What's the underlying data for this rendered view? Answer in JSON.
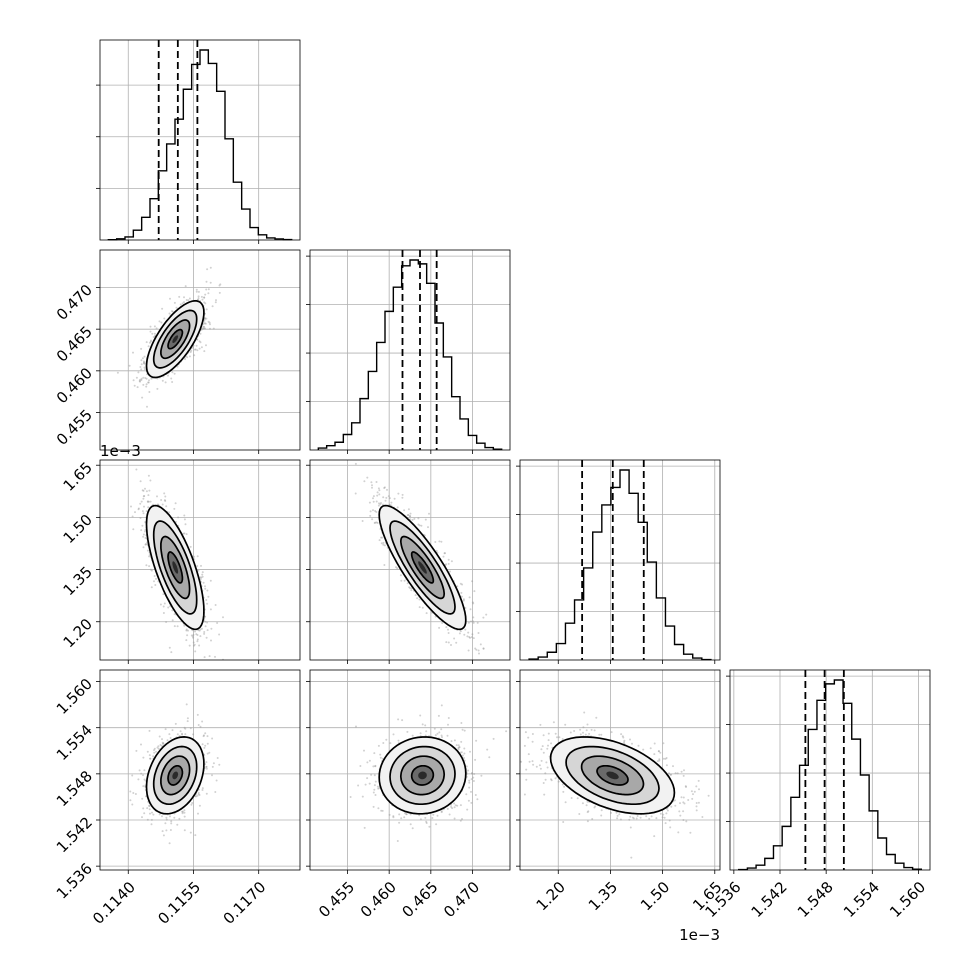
{
  "chart_data": {
    "type": "corner",
    "grid": true,
    "parameters": [
      {
        "index": 0,
        "range": [
          0.11335,
          0.11795
        ],
        "ticks": [
          0.114,
          0.1155,
          0.117
        ],
        "tick_labels": [
          "0.1140",
          "0.1155",
          "0.1170"
        ],
        "offset_label": "",
        "median": 0.11514,
        "quantiles": [
          0.1147,
          0.11559
        ],
        "hist_counts": [
          0.3,
          1.1,
          3,
          9.5,
          22,
          40,
          67,
          93,
          117,
          146,
          170,
          184,
          171,
          144,
          98,
          56,
          30,
          12,
          5,
          2,
          1,
          0.4
        ]
      },
      {
        "index": 1,
        "range": [
          0.4505,
          0.4745
        ],
        "ticks": [
          0.455,
          0.46,
          0.465,
          0.47
        ],
        "tick_labels": [
          "0.455",
          "0.460",
          "0.465",
          "0.470"
        ],
        "offset_label": "",
        "median": 0.4637,
        "quantiles": [
          0.4616,
          0.4657
        ],
        "hist_counts": [
          2,
          4.5,
          8,
          16,
          28,
          53,
          81,
          111,
          143,
          168,
          190,
          196,
          192,
          172,
          131,
          96,
          55,
          32,
          15,
          7,
          2.5,
          0.8
        ]
      },
      {
        "index": 2,
        "range": [
          1.09,
          1.665
        ],
        "ticks": [
          1.2,
          1.35,
          1.5,
          1.65
        ],
        "tick_labels": [
          "1.20",
          "1.35",
          "1.50",
          "1.65"
        ],
        "offset_label": "1e−3",
        "median": 1.3567,
        "quantiles": [
          1.2686,
          1.4458
        ],
        "hist_counts": [
          1,
          3,
          8,
          17,
          38,
          62,
          95,
          132,
          160,
          178,
          196,
          172,
          142,
          101,
          64,
          35,
          16,
          6,
          2,
          0.5
        ]
      },
      {
        "index": 3,
        "range": [
          1.5355,
          1.5615
        ],
        "ticks": [
          1.536,
          1.542,
          1.548,
          1.554,
          1.56
        ],
        "tick_labels": [
          "1.536",
          "1.542",
          "1.548",
          "1.554",
          "1.560"
        ],
        "offset_label": "",
        "median": 1.5478,
        "quantiles": [
          1.5453,
          1.5503
        ],
        "hist_counts": [
          0.5,
          2,
          5,
          12,
          25,
          45,
          75,
          108,
          145,
          175,
          192,
          196,
          172,
          135,
          98,
          61,
          33,
          16,
          7,
          2.5,
          0.8
        ]
      }
    ],
    "pairs": [
      {
        "x": 0,
        "y": 1,
        "correlation": 0.7,
        "center": [
          0.11508,
          0.4638
        ],
        "sigma": [
          0.00033,
          0.0023
        ]
      },
      {
        "x": 0,
        "y": 2,
        "correlation": -0.7,
        "center": [
          0.11508,
          1.356
        ],
        "sigma": [
          0.00033,
          0.089
        ]
      },
      {
        "x": 1,
        "y": 2,
        "correlation": -0.85,
        "center": [
          0.464,
          1.356
        ],
        "sigma": [
          0.0026,
          0.089
        ]
      },
      {
        "x": 0,
        "y": 3,
        "correlation": 0.3,
        "center": [
          0.11508,
          1.5478
        ],
        "sigma": [
          0.00033,
          0.0025
        ]
      },
      {
        "x": 1,
        "y": 3,
        "correlation": 0.05,
        "center": [
          0.464,
          1.5478
        ],
        "sigma": [
          0.0026,
          0.0025
        ]
      },
      {
        "x": 2,
        "y": 3,
        "correlation": -0.45,
        "center": [
          1.356,
          1.5478
        ],
        "sigma": [
          0.089,
          0.0025
        ]
      }
    ],
    "contour_levels": [
      0.5,
      1.0,
      1.5,
      2.0
    ]
  }
}
